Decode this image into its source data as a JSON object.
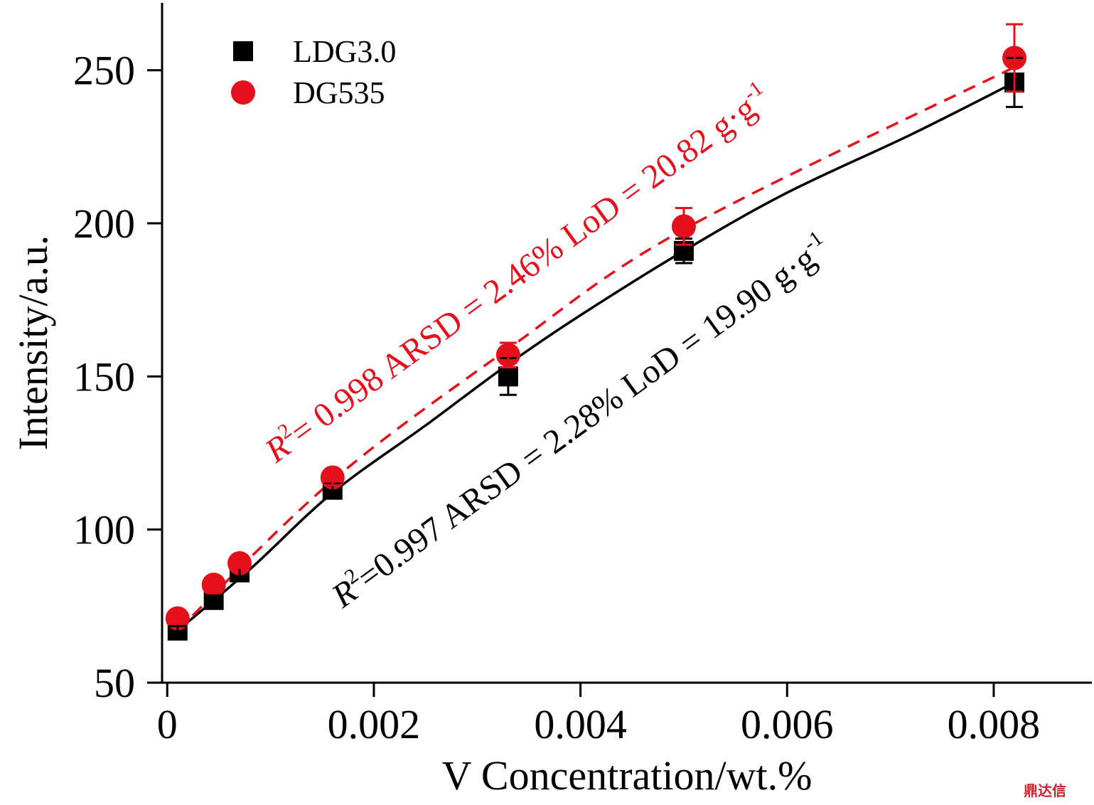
{
  "chart_data": {
    "type": "scatter",
    "xlabel": "V Concentration/wt.%",
    "ylabel": "Intensity/a.u.",
    "xlim": [
      -5e-05,
      0.00895
    ],
    "ylim": [
      50,
      272
    ],
    "xticks": [
      0,
      0.002,
      0.004,
      0.006,
      0.008
    ],
    "xtick_labels": [
      "0",
      "0.002",
      "0.004",
      "0.006",
      "0.008"
    ],
    "yticks": [
      50,
      100,
      150,
      200,
      250
    ],
    "ytick_labels": [
      "50",
      "100",
      "150",
      "200",
      "250"
    ],
    "grid": false,
    "legend_position": "top-left",
    "series": [
      {
        "name": "LDG3.0",
        "marker": "square",
        "color": "#000000",
        "fit_style": "solid",
        "x": [
          0.0001,
          0.00045,
          0.0007,
          0.0016,
          0.0033,
          0.005,
          0.0082
        ],
        "y": [
          67,
          77,
          86,
          113,
          150,
          191,
          246
        ],
        "err": [
          1.5,
          1.5,
          1.5,
          2,
          6,
          4,
          8
        ],
        "fit": {
          "x": [
            0.0001,
            0.0008,
            0.0016,
            0.0025,
            0.0033,
            0.004,
            0.005,
            0.006,
            0.0072,
            0.0082
          ],
          "y": [
            67,
            87,
            112,
            134,
            154,
            170,
            191,
            210,
            229,
            246
          ]
        }
      },
      {
        "name": "DG535",
        "marker": "circle",
        "color": "#e5101c",
        "fit_style": "dashed",
        "x": [
          0.0001,
          0.00045,
          0.0007,
          0.0016,
          0.0033,
          0.005,
          0.0082
        ],
        "y": [
          71,
          82,
          89,
          117,
          157,
          199,
          254
        ],
        "err": [
          1.5,
          1.5,
          1.5,
          2.5,
          4,
          6,
          11
        ],
        "fit": {
          "x": [
            0.0001,
            0.0016,
            0.0033,
            0.005,
            0.0082
          ],
          "y": [
            67,
            116,
            159,
            198,
            251
          ]
        }
      }
    ],
    "annotations": [
      {
        "series": "DG535",
        "r2_label": "R",
        "r2_sup": "2",
        "r2_text": "= 0.998  ARSD = 2.46%  LoD = 20.82 g·g",
        "unit_sup": "-1",
        "color": "#e5101c"
      },
      {
        "series": "LDG3.0",
        "r2_label": "R",
        "r2_sup": "2",
        "r2_text": "=0.997  ARSD = 2.28%  LoD = 19.90 g·g",
        "unit_sup": "-1",
        "color": "#000000"
      }
    ]
  },
  "watermark": "鼎达信"
}
